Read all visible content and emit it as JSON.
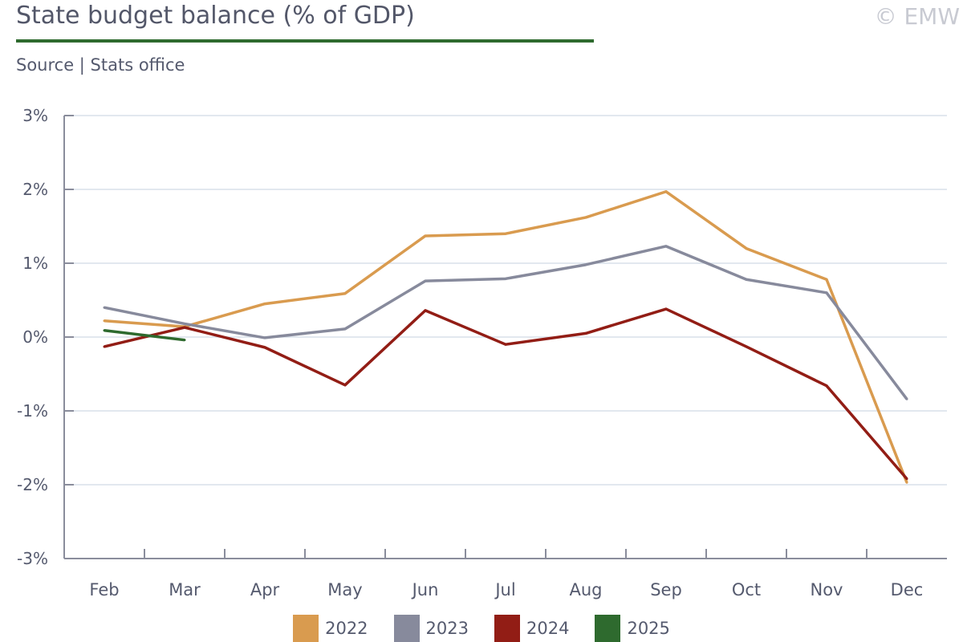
{
  "header": {
    "title": "State budget balance (% of GDP)",
    "subtitle": "Source | Stats office",
    "copyright": "© EMW",
    "title_rule_color": "#2e6a2e"
  },
  "chart_data": {
    "type": "line",
    "title": "State budget balance (% of GDP)",
    "xlabel": "",
    "ylabel": "",
    "categories": [
      "Feb",
      "Mar",
      "Apr",
      "May",
      "Jun",
      "Jul",
      "Aug",
      "Sep",
      "Oct",
      "Nov",
      "Dec"
    ],
    "ylim": [
      -3,
      3
    ],
    "yticks": [
      3,
      2,
      1,
      0,
      -1,
      -2,
      -3
    ],
    "ytick_labels": [
      "3%",
      "2%",
      "1%",
      "0%",
      "-1%",
      "-2%",
      "-3%"
    ],
    "grid": true,
    "legend_position": "bottom",
    "series": [
      {
        "name": "2022",
        "color": "#d99b4f",
        "values": [
          0.22,
          0.14,
          0.45,
          0.59,
          1.37,
          1.4,
          1.62,
          1.97,
          1.2,
          0.78,
          -1.97
        ]
      },
      {
        "name": "2023",
        "color": "#878a9c",
        "values": [
          0.4,
          0.18,
          -0.01,
          0.11,
          0.76,
          0.79,
          0.98,
          1.23,
          0.78,
          0.6,
          -0.84
        ]
      },
      {
        "name": "2024",
        "color": "#921d15",
        "values": [
          -0.13,
          0.13,
          -0.14,
          -0.65,
          0.36,
          -0.1,
          0.05,
          0.38,
          -0.13,
          -0.66,
          -1.92
        ]
      },
      {
        "name": "2025",
        "color": "#2e6a2e",
        "values": [
          0.09,
          -0.04,
          null,
          null,
          null,
          null,
          null,
          null,
          null,
          null,
          null
        ]
      }
    ]
  }
}
